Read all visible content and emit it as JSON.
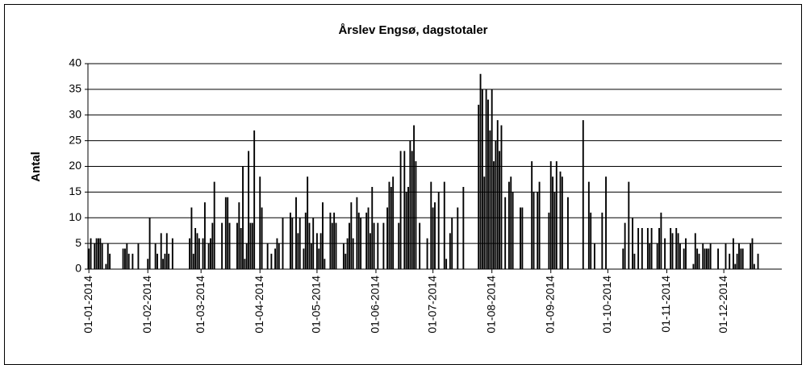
{
  "chart_data": {
    "type": "bar",
    "title": "Årslev Engsø, dagstotaler",
    "y_label": "Antal",
    "color": "#000000",
    "grid": true,
    "ylim": [
      0,
      40
    ],
    "yticks": [
      0,
      5,
      10,
      15,
      20,
      25,
      30,
      35,
      40
    ],
    "categories": [
      "01-01-2014",
      null,
      null,
      null,
      null,
      null,
      null,
      null,
      null,
      null,
      null,
      null,
      null,
      null,
      null,
      null,
      null,
      null,
      null,
      null,
      null,
      null,
      null,
      null,
      null,
      null,
      null,
      null,
      null,
      null,
      null,
      "01-02-2014",
      null,
      null,
      null,
      null,
      null,
      null,
      null,
      null,
      null,
      null,
      null,
      null,
      null,
      null,
      null,
      null,
      null,
      null,
      null,
      null,
      null,
      null,
      null,
      null,
      null,
      null,
      null,
      "01-03-2014",
      null,
      null,
      null,
      null,
      null,
      null,
      null,
      null,
      null,
      null,
      null,
      null,
      null,
      null,
      null,
      null,
      null,
      null,
      null,
      null,
      null,
      null,
      null,
      null,
      null,
      null,
      null,
      null,
      null,
      null,
      "01-04-2014",
      null,
      null,
      null,
      null,
      null,
      null,
      null,
      null,
      null,
      null,
      null,
      null,
      null,
      null,
      null,
      null,
      null,
      null,
      null,
      null,
      null,
      null,
      null,
      null,
      null,
      null,
      null,
      null,
      null,
      "01-05-2014",
      null,
      null,
      null,
      null,
      null,
      null,
      null,
      null,
      null,
      null,
      null,
      null,
      null,
      null,
      null,
      null,
      null,
      null,
      null,
      null,
      null,
      null,
      null,
      null,
      null,
      null,
      null,
      null,
      null,
      null,
      "01-06-2014",
      null,
      null,
      null,
      null,
      null,
      null,
      null,
      null,
      null,
      null,
      null,
      null,
      null,
      null,
      null,
      null,
      null,
      null,
      null,
      null,
      null,
      null,
      null,
      null,
      null,
      null,
      null,
      null,
      null,
      "01-07-2014",
      null,
      null,
      null,
      null,
      null,
      null,
      null,
      null,
      null,
      null,
      null,
      null,
      null,
      null,
      null,
      null,
      null,
      null,
      null,
      null,
      null,
      null,
      null,
      null,
      null,
      null,
      null,
      null,
      null,
      null,
      "01-08-2014",
      null,
      null,
      null,
      null,
      null,
      null,
      null,
      null,
      null,
      null,
      null,
      null,
      null,
      null,
      null,
      null,
      null,
      null,
      null,
      null,
      null,
      null,
      null,
      null,
      null,
      null,
      null,
      null,
      null,
      null,
      "01-09-2014",
      null,
      null,
      null,
      null,
      null,
      null,
      null,
      null,
      null,
      null,
      null,
      null,
      null,
      null,
      null,
      null,
      null,
      null,
      null,
      null,
      null,
      null,
      null,
      null,
      null,
      null,
      null,
      null,
      null,
      "01-10-2014",
      null,
      null,
      null,
      null,
      null,
      null,
      null,
      null,
      null,
      null,
      null,
      null,
      null,
      null,
      null,
      null,
      null,
      null,
      null,
      null,
      null,
      null,
      null,
      null,
      null,
      null,
      null,
      null,
      null,
      null,
      "01-11-2014",
      null,
      null,
      null,
      null,
      null,
      null,
      null,
      null,
      null,
      null,
      null,
      null,
      null,
      null,
      null,
      null,
      null,
      null,
      null,
      null,
      null,
      null,
      null,
      null,
      null,
      null,
      null,
      null,
      null,
      "01-12-2014",
      null,
      null,
      null,
      null,
      null,
      null,
      null,
      null,
      null,
      null,
      null,
      null,
      null,
      null,
      null,
      null,
      null,
      null,
      null,
      null,
      null,
      null,
      null,
      null,
      null,
      null,
      null,
      null,
      null,
      null
    ],
    "values": [
      4,
      6,
      0,
      5,
      6,
      6,
      6,
      5,
      0,
      1,
      5,
      3,
      0,
      0,
      0,
      0,
      0,
      0,
      4,
      4,
      5,
      3,
      0,
      3,
      0,
      0,
      5,
      0,
      0,
      0,
      0,
      2,
      10,
      0,
      0,
      5,
      3,
      0,
      7,
      2,
      3,
      7,
      3,
      0,
      6,
      0,
      0,
      0,
      0,
      0,
      0,
      0,
      0,
      6,
      12,
      3,
      8,
      7,
      6,
      0,
      6,
      13,
      0,
      5,
      6,
      9,
      17,
      0,
      0,
      0,
      9,
      0,
      14,
      14,
      9,
      0,
      0,
      0,
      9,
      13,
      8,
      20,
      2,
      5,
      23,
      9,
      9,
      27,
      0,
      0,
      18,
      12,
      0,
      0,
      5,
      0,
      3,
      0,
      4,
      6,
      5,
      0,
      10,
      0,
      0,
      0,
      11,
      10,
      0,
      14,
      7,
      10,
      0,
      4,
      11,
      18,
      9,
      5,
      10,
      0,
      7,
      4,
      7,
      13,
      2,
      0,
      0,
      11,
      9,
      11,
      9,
      0,
      0,
      0,
      5,
      3,
      6,
      9,
      13,
      6,
      0,
      14,
      11,
      10,
      0,
      0,
      11,
      12,
      7,
      16,
      9,
      0,
      9,
      0,
      0,
      9,
      0,
      12,
      17,
      16,
      18,
      0,
      0,
      9,
      23,
      0,
      23,
      15,
      16,
      25,
      23,
      28,
      21,
      0,
      9,
      0,
      0,
      0,
      6,
      0,
      17,
      12,
      13,
      0,
      15,
      0,
      0,
      17,
      2,
      0,
      7,
      10,
      0,
      0,
      12,
      0,
      0,
      16,
      0,
      0,
      0,
      0,
      0,
      0,
      0,
      32,
      38,
      35,
      18,
      35,
      33,
      27,
      35,
      21,
      25,
      29,
      23,
      28,
      0,
      14,
      0,
      17,
      18,
      15,
      0,
      0,
      0,
      12,
      12,
      0,
      0,
      0,
      0,
      21,
      15,
      0,
      15,
      17,
      0,
      0,
      0,
      0,
      11,
      21,
      18,
      15,
      21,
      0,
      19,
      18,
      0,
      0,
      14,
      0,
      0,
      0,
      0,
      0,
      0,
      0,
      29,
      0,
      0,
      17,
      11,
      0,
      5,
      0,
      0,
      0,
      11,
      0,
      18,
      0,
      0,
      0,
      0,
      0,
      0,
      0,
      0,
      4,
      9,
      0,
      17,
      0,
      10,
      3,
      0,
      8,
      0,
      8,
      0,
      0,
      8,
      5,
      8,
      0,
      0,
      5,
      8,
      11,
      0,
      6,
      0,
      0,
      8,
      7,
      0,
      8,
      7,
      5,
      0,
      4,
      6,
      0,
      0,
      0,
      1,
      7,
      4,
      3,
      0,
      5,
      4,
      4,
      4,
      5,
      0,
      0,
      0,
      4,
      0,
      0,
      0,
      5,
      0,
      3,
      0,
      6,
      1,
      3,
      5,
      4,
      4,
      0,
      0,
      0,
      5,
      6,
      1,
      0,
      3,
      0,
      0,
      0,
      0,
      0,
      0,
      0,
      0,
      0,
      0,
      0,
      0
    ]
  }
}
